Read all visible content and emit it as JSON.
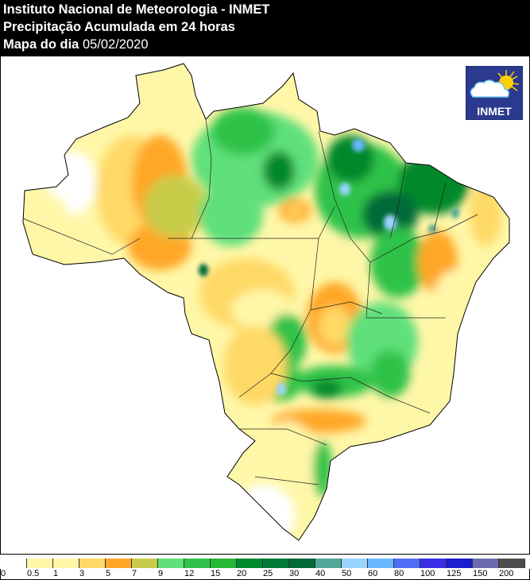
{
  "header": {
    "line1": "Instituto Nacional de Meteorologia - INMET",
    "line2": "Precipitação Acumulada em 24 horas",
    "line3_label": "Mapa do dia",
    "line3_date": "05/02/2020"
  },
  "logo": {
    "text": "INMET",
    "icon": "cloud-sun-icon"
  },
  "map": {
    "region": "Brasil",
    "colors": {
      "white": "#ffffff",
      "light_yellow": "#fff7a8",
      "yellow": "#ffe08a",
      "orange": "#ffa726",
      "olive": "#c8cc4a",
      "light_green": "#5fe07a",
      "green": "#2ec24a",
      "dark_green": "#00882a",
      "darker_green": "#006b38",
      "teal": "#4fa89a",
      "light_blue": "#99d4ff",
      "blue": "#6ab8ff"
    }
  },
  "legend": {
    "swatches": [
      {
        "color": "#ffffff"
      },
      {
        "color": "#fff6a8"
      },
      {
        "color": "#fff6a8"
      },
      {
        "color": "#ffd966"
      },
      {
        "color": "#ffa726"
      },
      {
        "color": "#c8cc4a"
      },
      {
        "color": "#5fe07a"
      },
      {
        "color": "#2ec24a"
      },
      {
        "color": "#24b834"
      },
      {
        "color": "#008a2e"
      },
      {
        "color": "#007a36"
      },
      {
        "color": "#006b38"
      },
      {
        "color": "#4fa89a"
      },
      {
        "color": "#99d4ff"
      },
      {
        "color": "#6ab8ff"
      },
      {
        "color": "#4f6df5"
      },
      {
        "color": "#3a2ee8"
      },
      {
        "color": "#1c1dd0"
      },
      {
        "color": "#6b6bb0"
      },
      {
        "color": "#4d4d4d"
      }
    ],
    "labels": [
      "0",
      "0.5",
      "1",
      "3",
      "5",
      "7",
      "9",
      "12",
      "15",
      "20",
      "25",
      "30",
      "40",
      "50",
      "60",
      "80",
      "100",
      "125",
      "150",
      "200"
    ]
  }
}
